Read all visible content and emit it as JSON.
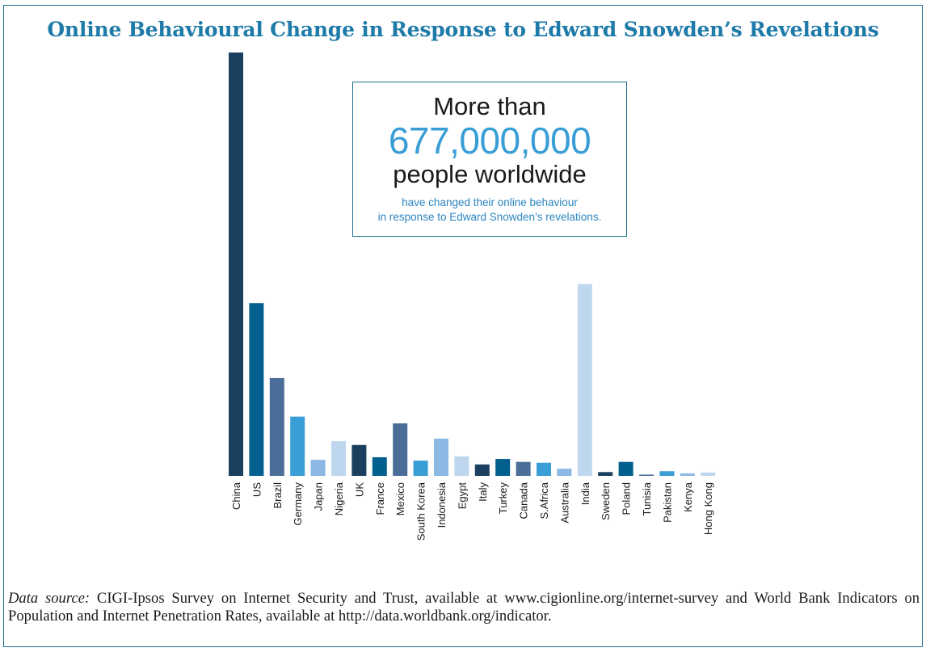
{
  "title": "Online Behavioural Change in Response to Edward Snowden’s Revelations",
  "callout": {
    "line1": "More than",
    "number": "677,000,000",
    "line3": "people worldwide",
    "small1": "have changed their online behaviour",
    "small2": "in response to Edward Snowden’s revelations."
  },
  "source": {
    "label": "Data source:",
    "text": " CIGI-Ipsos Survey on Internet Security and Trust, available at www.cigionline.org/internet-survey and World Bank Indicators on Population and Internet Penetration Rates, available at http://data.worldbank.org/indicator."
  },
  "colors": {
    "title": "#1e7aa8",
    "frame": "#1f6d8f",
    "highlight_number": "#3a9ed6"
  },
  "chart_data": {
    "type": "bar",
    "title": "Online Behavioural Change in Response to Edward Snowden’s Revelations",
    "xlabel": "",
    "ylabel": "",
    "ylim": [
      0,
      100
    ],
    "grid": false,
    "legend": "none",
    "categories": [
      "China",
      "US",
      "Brazil",
      "Germany",
      "Japan",
      "Nigeria",
      "UK",
      "France",
      "Mexico",
      "South Korea",
      "Indonesia",
      "Egypt",
      "Italy",
      "Turkey",
      "Canada",
      "S.Africa",
      "Australia",
      "India",
      "Sweden",
      "Poland",
      "Tunisia",
      "Pakistan",
      "Kenya",
      "Hong Kong"
    ],
    "values": [
      100,
      40.8,
      23.1,
      14,
      3.8,
      8.2,
      7.3,
      4.4,
      12.4,
      3.6,
      8.8,
      4.6,
      2.7,
      4,
      3.3,
      3.1,
      1.7,
      45.3,
      0.9,
      3.3,
      0.3,
      1.1,
      0.6,
      0.8
    ],
    "colors": [
      "#1b3f5e",
      "#03608e",
      "#4b6e98",
      "#3a9ed6",
      "#8cb9e3",
      "#bed7ee",
      "#1b3f5e",
      "#03608e",
      "#4b6e98",
      "#3a9ed6",
      "#8cb9e3",
      "#bed7ee",
      "#1b3f5e",
      "#03608e",
      "#4b6e98",
      "#3a9ed6",
      "#8cb9e3",
      "#bed7ee",
      "#1b3f5e",
      "#03608e",
      "#4b6e98",
      "#3a9ed6",
      "#8cb9e3",
      "#bed7ee"
    ]
  }
}
